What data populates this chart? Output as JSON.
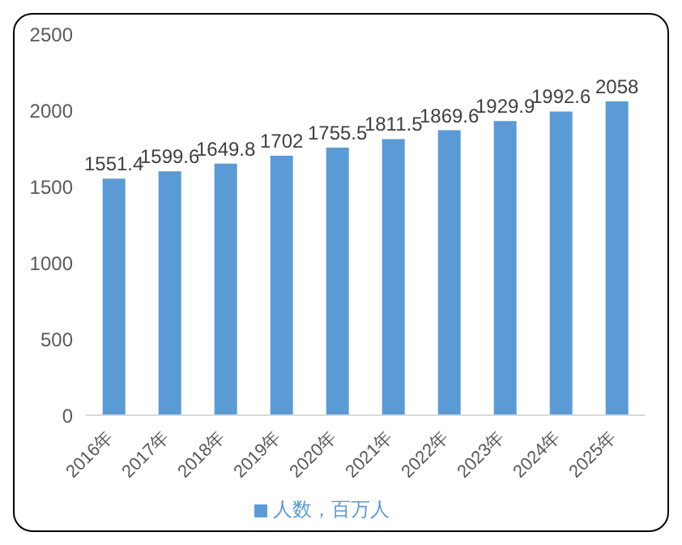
{
  "chart_data": {
    "type": "bar",
    "categories": [
      "2016年",
      "2017年",
      "2018年",
      "2019年",
      "2020年",
      "2021年",
      "2022年",
      "2023年",
      "2024年",
      "2025年"
    ],
    "series": [
      {
        "name": "人数，百万人",
        "color": "#5b9bd5",
        "values": [
          1551.4,
          1599.6,
          1649.8,
          1702,
          1755.5,
          1811.5,
          1869.6,
          1929.9,
          1992.6,
          2058
        ]
      }
    ],
    "ylim": [
      0,
      2500
    ],
    "yticks": [
      0,
      500,
      1000,
      1500,
      2000,
      2500
    ],
    "grid": false,
    "legend": "bottom",
    "data_labels": true
  }
}
